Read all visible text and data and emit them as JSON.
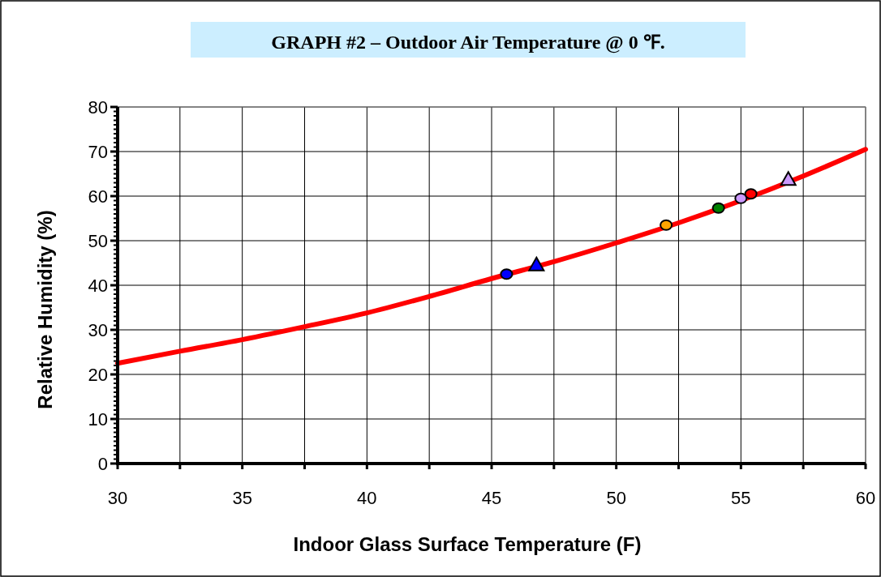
{
  "chart_data": {
    "type": "line",
    "title": "GRAPH #2 – Outdoor Air Temperature @ 0 ℉.",
    "xlabel": "Indoor Glass Surface Temperature (F)",
    "ylabel": "Relative Humidity (%)",
    "xlim": [
      30,
      60
    ],
    "xticks": [
      30,
      {
        "value": 32.5,
        "label": null
      },
      35,
      {
        "value": 37.5,
        "label": null
      },
      40,
      {
        "value": 42.5,
        "label": null
      },
      45,
      {
        "value": 47.5,
        "label": null
      },
      50,
      {
        "value": 52.5,
        "label": null
      },
      55,
      {
        "value": 57.5,
        "label": null
      },
      60
    ],
    "ylim": [
      0,
      80
    ],
    "yticks": [
      0,
      10,
      20,
      30,
      40,
      50,
      60,
      70,
      80
    ],
    "grid": true,
    "series": [
      {
        "color": "#ff0000",
        "marker": "none",
        "x": [
          30,
          32.5,
          35,
          37.5,
          40,
          42.5,
          45,
          47.5,
          50,
          52.5,
          55,
          57.5,
          60
        ],
        "values": [
          22.5,
          25.2,
          27.8,
          30.7,
          33.8,
          37.5,
          41.5,
          45.3,
          49.5,
          54,
          59,
          64.5,
          70.5
        ]
      },
      {
        "type": "scatter",
        "color": "#0000ff",
        "marker": "circle",
        "x": [
          45.6
        ],
        "values": [
          42.5
        ]
      },
      {
        "type": "scatter",
        "color": "#0000ff",
        "marker": "triangle",
        "x": [
          46.8
        ],
        "values": [
          44.4
        ]
      },
      {
        "type": "scatter",
        "color": "#ffa500",
        "marker": "circle",
        "x": [
          52
        ],
        "values": [
          53.5
        ]
      },
      {
        "type": "scatter",
        "color": "#008000",
        "marker": "circle",
        "x": [
          54.1
        ],
        "values": [
          57.3
        ]
      },
      {
        "type": "scatter",
        "color": "#cc99ff",
        "marker": "circle",
        "x": [
          55
        ],
        "values": [
          59.5
        ]
      },
      {
        "type": "scatter",
        "color": "#ff0000",
        "marker": "circle",
        "x": [
          55.4
        ],
        "values": [
          60.5
        ]
      },
      {
        "type": "scatter",
        "color": "#cc99ff",
        "marker": "triangle",
        "x": [
          56.9
        ],
        "values": [
          63.6
        ]
      }
    ]
  }
}
